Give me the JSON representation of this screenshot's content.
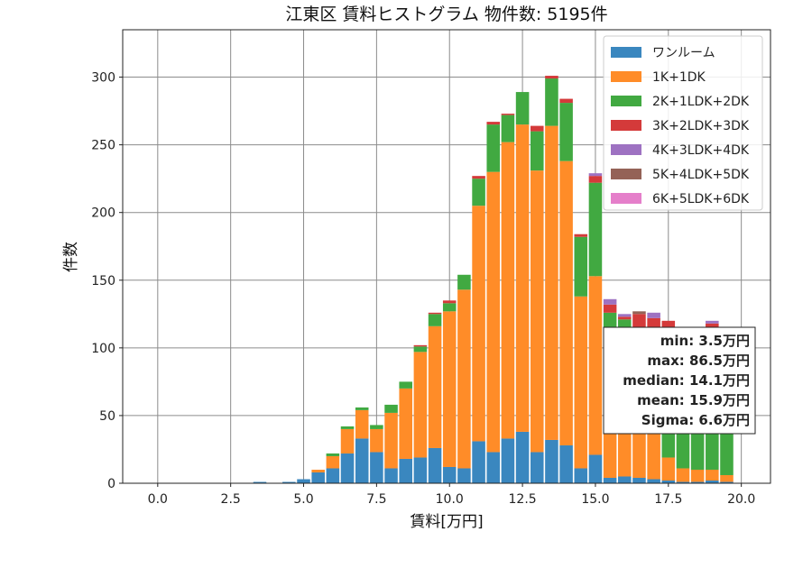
{
  "chart_data": {
    "type": "bar",
    "stacked": true,
    "title": "江東区 賃料ヒストグラム 物件数: 5195件",
    "xlabel": "賃料[万円]",
    "ylabel": "件数",
    "xlim": [
      -1.2,
      21.0
    ],
    "ylim": [
      0,
      335
    ],
    "xticks": [
      0.0,
      2.5,
      5.0,
      7.5,
      10.0,
      12.5,
      15.0,
      17.5,
      20.0
    ],
    "xtick_labels": [
      "0.0",
      "2.5",
      "5.0",
      "7.5",
      "10.0",
      "12.5",
      "15.0",
      "17.5",
      "20.0"
    ],
    "yticks": [
      0,
      50,
      100,
      150,
      200,
      250,
      300
    ],
    "ytick_labels": [
      "0",
      "50",
      "100",
      "150",
      "200",
      "250",
      "300"
    ],
    "grid": true,
    "legend_position": "top-right",
    "bin_width": 0.5,
    "x": [
      3.5,
      4.0,
      4.5,
      5.0,
      5.5,
      6.0,
      6.5,
      7.0,
      7.5,
      8.0,
      8.5,
      9.0,
      9.5,
      10.0,
      10.5,
      11.0,
      11.5,
      12.0,
      12.5,
      13.0,
      13.5,
      14.0,
      14.5,
      15.0,
      15.5,
      16.0,
      16.5,
      17.0,
      17.5,
      18.0,
      18.5,
      19.0,
      19.5
    ],
    "series": [
      {
        "name": "ワンルーム",
        "color": "#3a87bf",
        "values": [
          1,
          0,
          1,
          3,
          8,
          11,
          22,
          33,
          23,
          11,
          18,
          19,
          26,
          12,
          11,
          31,
          23,
          33,
          38,
          23,
          32,
          28,
          11,
          21,
          4,
          5,
          4,
          3,
          2,
          1,
          1,
          2,
          1
        ]
      },
      {
        "name": "1K+1DK",
        "color": "#ff8c28",
        "values": [
          0,
          0,
          0,
          0,
          2,
          9,
          18,
          21,
          17,
          41,
          52,
          78,
          90,
          115,
          132,
          174,
          207,
          219,
          227,
          208,
          232,
          210,
          127,
          132,
          110,
          84,
          66,
          37,
          17,
          10,
          9,
          8,
          5
        ]
      },
      {
        "name": "2K+1LDK+2DK",
        "color": "#41a941",
        "values": [
          0,
          0,
          0,
          0,
          0,
          2,
          2,
          2,
          3,
          6,
          5,
          4,
          9,
          6,
          11,
          20,
          35,
          20,
          24,
          29,
          35,
          43,
          44,
          69,
          12,
          32,
          45,
          57,
          93,
          96,
          98,
          100,
          92
        ]
      },
      {
        "name": "3K+2LDK+3DK",
        "color": "#d43a3a",
        "values": [
          0,
          0,
          0,
          0,
          0,
          0,
          0,
          0,
          0,
          0,
          0,
          1,
          1,
          2,
          0,
          2,
          2,
          1,
          0,
          4,
          2,
          3,
          2,
          5,
          6,
          2,
          10,
          25,
          8,
          6,
          4,
          8,
          6
        ]
      },
      {
        "name": "4K+3LDK+4DK",
        "color": "#9e72c2",
        "values": [
          0,
          0,
          0,
          0,
          0,
          0,
          0,
          0,
          0,
          0,
          0,
          0,
          0,
          0,
          0,
          0,
          0,
          0,
          0,
          0,
          0,
          0,
          0,
          2,
          4,
          2,
          0,
          4,
          0,
          0,
          0,
          2,
          0
        ]
      },
      {
        "name": "5K+4LDK+5DK",
        "color": "#946257",
        "values": [
          0,
          0,
          0,
          0,
          0,
          0,
          0,
          0,
          0,
          0,
          0,
          0,
          0,
          0,
          0,
          0,
          0,
          0,
          0,
          0,
          0,
          0,
          0,
          0,
          0,
          0,
          2,
          0,
          0,
          0,
          0,
          0,
          0
        ]
      },
      {
        "name": "6K+5LDK+6DK",
        "color": "#e57fca",
        "values": [
          0,
          0,
          0,
          0,
          0,
          0,
          0,
          0,
          0,
          0,
          0,
          0,
          0,
          0,
          0,
          0,
          0,
          0,
          0,
          0,
          0,
          0,
          0,
          0,
          0,
          0,
          0,
          0,
          0,
          0,
          0,
          0,
          0
        ]
      }
    ],
    "annotations": [
      "min: 3.5万円",
      "max: 86.5万円",
      "median: 14.1万円",
      "mean: 15.9万円",
      "Sigma: 6.6万円"
    ]
  }
}
